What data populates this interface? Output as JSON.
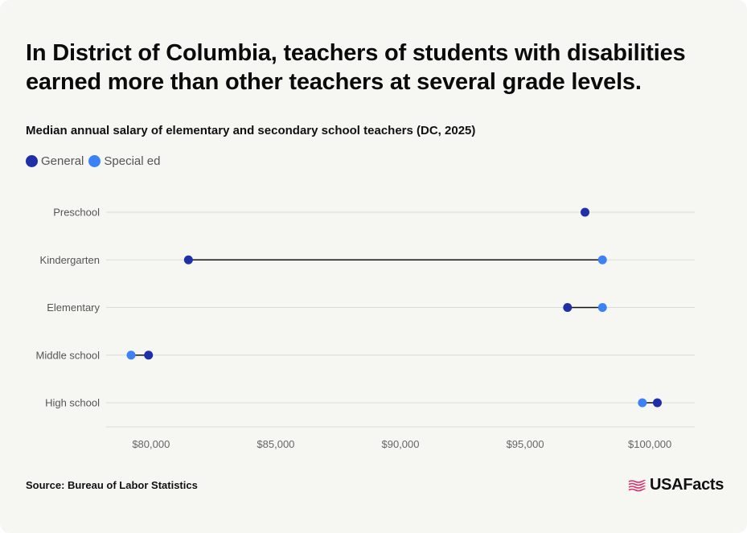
{
  "title": "In District of Columbia, teachers of students with disabilities earned more than other teachers at several grade levels.",
  "subtitle": "Median annual salary of elementary and secondary school teachers (DC, 2025)",
  "legend": [
    {
      "label": "General",
      "color": "#1f2fa8"
    },
    {
      "label": "Special ed",
      "color": "#3b82f6"
    }
  ],
  "source": "Source: Bureau of Labor Statistics",
  "logo_text": "USAFacts",
  "colors": {
    "general": "#1f2fa8",
    "special": "#3b82f6",
    "connector": "#111111",
    "grid": "#dcdcd6"
  },
  "chart_data": {
    "type": "dumbbell",
    "categories": [
      "Preschool",
      "Kindergarten",
      "Elementary",
      "Middle school",
      "High school"
    ],
    "series": [
      {
        "name": "General",
        "values": [
          97400,
          81500,
          96700,
          79900,
          100300
        ]
      },
      {
        "name": "Special ed",
        "values": [
          null,
          98100,
          98100,
          79200,
          99700
        ]
      }
    ],
    "xlim": [
      78200,
      101800
    ],
    "xticks": [
      80000,
      85000,
      90000,
      95000,
      100000
    ],
    "xtick_labels": [
      "$80,000",
      "$85,000",
      "$90,000",
      "$95,000",
      "$100,000"
    ],
    "grid": true,
    "legend_position": "top-left"
  }
}
